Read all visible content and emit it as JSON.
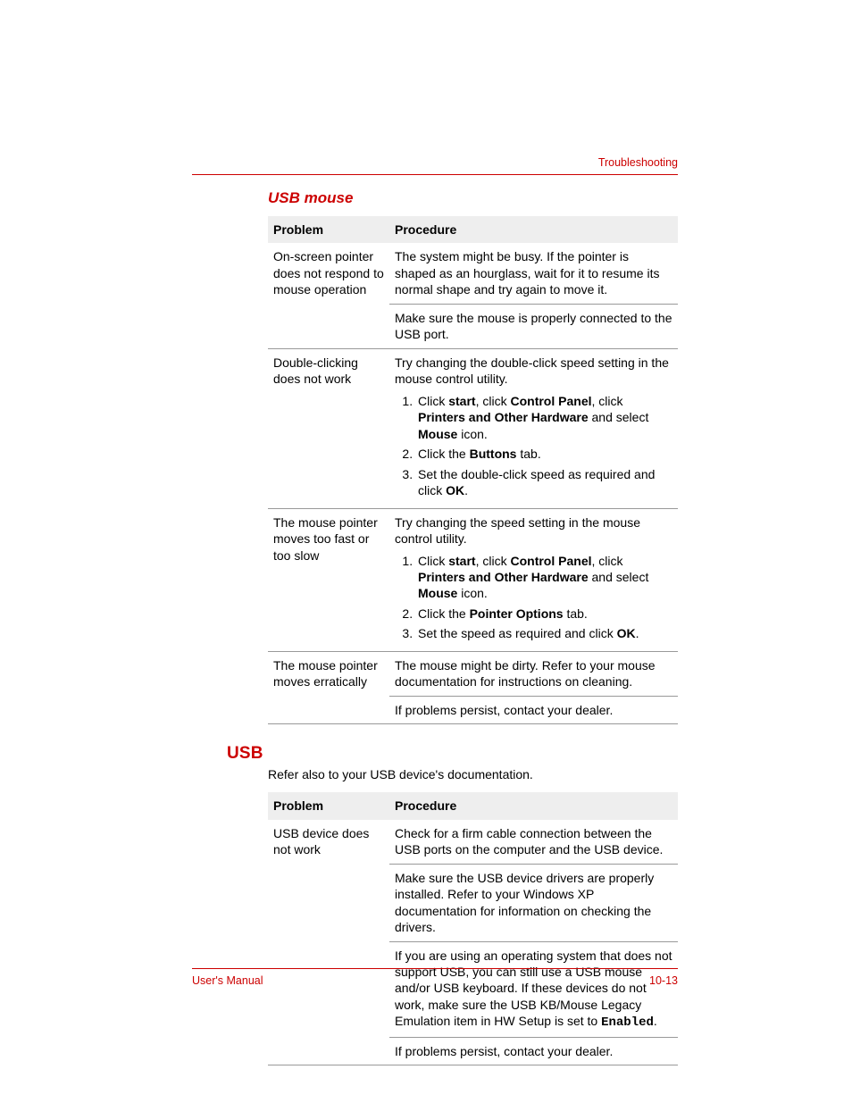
{
  "colors": {
    "accent": "#cc0000",
    "text": "#000000",
    "header_row_bg": "#eeeeee",
    "cell_border": "#999999",
    "page_bg": "#ffffff"
  },
  "typography": {
    "body_family": "Arial, Helvetica, sans-serif",
    "body_size_pt": 10.5,
    "section_italic_size_pt": 12.5,
    "section_big_size_pt": 14,
    "mono_family": "Courier New"
  },
  "header": {
    "label": "Troubleshooting"
  },
  "footer": {
    "left": "User's Manual",
    "right": "10-13"
  },
  "section1": {
    "title": "USB mouse",
    "table": {
      "columns": [
        "Problem",
        "Procedure"
      ],
      "rows": [
        {
          "problem": "On-screen pointer does not respond to mouse operation",
          "procedures": [
            {
              "text": "The system might be busy. If the pointer is shaped as an hourglass, wait for it to resume its normal shape and try again to move it."
            },
            {
              "text": "Make sure the mouse is properly connected to the USB port."
            }
          ]
        },
        {
          "problem": "Double-clicking does not work",
          "procedures": [
            {
              "text": "Try changing the double-click speed setting in the mouse control utility.",
              "steps": [
                {
                  "parts": [
                    {
                      "t": "Click "
                    },
                    {
                      "b": "start"
                    },
                    {
                      "t": ", click "
                    },
                    {
                      "b": "Control Panel"
                    },
                    {
                      "t": ", click "
                    },
                    {
                      "b": "Printers and Other Hardware"
                    },
                    {
                      "t": " and select "
                    },
                    {
                      "b": "Mouse"
                    },
                    {
                      "t": " icon."
                    }
                  ]
                },
                {
                  "parts": [
                    {
                      "t": "Click the "
                    },
                    {
                      "b": "Buttons"
                    },
                    {
                      "t": " tab."
                    }
                  ]
                },
                {
                  "parts": [
                    {
                      "t": "Set the double-click speed as required and click "
                    },
                    {
                      "b": "OK"
                    },
                    {
                      "t": "."
                    }
                  ]
                }
              ]
            }
          ]
        },
        {
          "problem": "The mouse pointer moves too fast or too slow",
          "procedures": [
            {
              "text": "Try changing the speed setting in the mouse control utility.",
              "steps": [
                {
                  "parts": [
                    {
                      "t": "Click "
                    },
                    {
                      "b": "start"
                    },
                    {
                      "t": ", click "
                    },
                    {
                      "b": "Control Panel"
                    },
                    {
                      "t": ", click "
                    },
                    {
                      "b": "Printers and Other Hardware"
                    },
                    {
                      "t": " and select "
                    },
                    {
                      "b": "Mouse"
                    },
                    {
                      "t": " icon."
                    }
                  ]
                },
                {
                  "parts": [
                    {
                      "t": "Click the "
                    },
                    {
                      "b": "Pointer Options"
                    },
                    {
                      "t": " tab."
                    }
                  ]
                },
                {
                  "parts": [
                    {
                      "t": "Set the speed as required and click "
                    },
                    {
                      "b": "OK"
                    },
                    {
                      "t": "."
                    }
                  ]
                }
              ]
            }
          ]
        },
        {
          "problem": "The mouse pointer moves erratically",
          "procedures": [
            {
              "text": "The mouse might be dirty. Refer to your mouse documentation for instructions on cleaning."
            },
            {
              "text": "If problems persist, contact your dealer."
            }
          ]
        }
      ]
    }
  },
  "section2": {
    "title": "USB",
    "intro": "Refer also to your USB device's documentation.",
    "table": {
      "columns": [
        "Problem",
        "Procedure"
      ],
      "rows": [
        {
          "problem": "USB device does not work",
          "procedures": [
            {
              "text": "Check for a firm cable connection between the USB ports on the computer and the USB device."
            },
            {
              "text": "Make sure the USB device drivers are properly installed. Refer to your Windows XP documentation for information on checking the drivers."
            },
            {
              "rich": [
                {
                  "t": "If you are using an operating system that does not support USB, you can still use a USB mouse and/or USB keyboard. If these devices do not work, make sure the USB KB/Mouse Legacy Emulation item in HW Setup is set to "
                },
                {
                  "mono": "Enabled"
                },
                {
                  "t": "."
                }
              ]
            },
            {
              "text": "If problems persist, contact your dealer."
            }
          ]
        }
      ]
    }
  }
}
